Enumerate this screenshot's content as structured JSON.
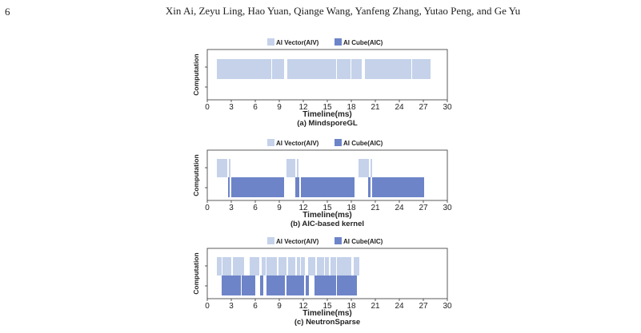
{
  "header": {
    "page_number": "6",
    "authors": "Xin Ai, Zeyu Ling, Hao Yuan, Qiange Wang, Yanfeng Zhang, Yutao Peng, and Ge Yu"
  },
  "colors": {
    "aiv": "#c5d2ea",
    "aic": "#6d84c8",
    "axis": "#333333"
  },
  "chart_data": [
    {
      "type": "bar",
      "subtype": "timeline",
      "caption": "(a) MindsporeGL",
      "xlabel": "Timeline(ms)",
      "ylabel": "Computation",
      "xlim": [
        0,
        30
      ],
      "xticks": [
        "0",
        "3",
        "6",
        "9",
        "12",
        "15",
        "18",
        "21",
        "24",
        "27",
        "30"
      ],
      "legend": {
        "placement": "top",
        "items": [
          "AI Vector(AIV)",
          "AI Cube(AIC)"
        ]
      },
      "series": [
        {
          "name": "AI Vector(AIV)",
          "lane": "upper",
          "segments": [
            [
              1.2,
              8.0
            ],
            [
              8.1,
              9.6
            ],
            [
              10.0,
              16.1
            ],
            [
              16.2,
              17.9
            ],
            [
              18.0,
              19.3
            ],
            [
              19.7,
              25.5
            ],
            [
              25.6,
              27.9
            ]
          ]
        },
        {
          "name": "AI Cube(AIC)",
          "lane": "lower",
          "segments": []
        }
      ]
    },
    {
      "type": "bar",
      "subtype": "timeline",
      "caption": "(b) AIC-based kernel",
      "xlabel": "Timeline(ms)",
      "ylabel": "Computation",
      "xlim": [
        0,
        30
      ],
      "xticks": [
        "0",
        "3",
        "6",
        "9",
        "12",
        "15",
        "18",
        "21",
        "24",
        "27",
        "30"
      ],
      "legend": {
        "placement": "top",
        "items": [
          "AI Vector(AIV)",
          "AI Cube(AIC)"
        ]
      },
      "series": [
        {
          "name": "AI Vector(AIV)",
          "lane": "upper",
          "segments": [
            [
              1.2,
              2.5
            ],
            [
              2.7,
              2.9
            ],
            [
              9.9,
              11.0
            ],
            [
              11.2,
              11.4
            ],
            [
              18.9,
              20.2
            ],
            [
              20.4,
              20.6
            ]
          ]
        },
        {
          "name": "AI Cube(AIC)",
          "lane": "lower",
          "segments": [
            [
              2.6,
              2.8
            ],
            [
              3.0,
              9.6
            ],
            [
              11.0,
              11.5
            ],
            [
              11.7,
              18.4
            ],
            [
              20.1,
              20.4
            ],
            [
              20.6,
              27.1
            ]
          ]
        }
      ]
    },
    {
      "type": "bar",
      "subtype": "timeline",
      "caption": "(c) NeutronSparse",
      "xlabel": "Timeline(ms)",
      "ylabel": "Computation",
      "xlim": [
        0,
        30
      ],
      "xticks": [
        "0",
        "3",
        "6",
        "9",
        "12",
        "15",
        "18",
        "21",
        "24",
        "27",
        "30"
      ],
      "legend": {
        "placement": "top",
        "items": [
          "AI Vector(AIV)",
          "AI Cube(AIC)"
        ]
      },
      "series": [
        {
          "name": "AI Vector(AIV)",
          "lane": "upper",
          "segments": [
            [
              1.2,
              1.8
            ],
            [
              1.9,
              3.0
            ],
            [
              3.2,
              4.6
            ],
            [
              5.3,
              6.5
            ],
            [
              6.8,
              7.3
            ],
            [
              7.4,
              8.7
            ],
            [
              8.9,
              9.9
            ],
            [
              10.1,
              11.0
            ],
            [
              11.2,
              11.6
            ],
            [
              11.7,
              12.2
            ],
            [
              12.6,
              13.5
            ],
            [
              13.7,
              14.6
            ],
            [
              14.7,
              15.2
            ],
            [
              15.4,
              16.1
            ],
            [
              16.2,
              18.0
            ],
            [
              18.3,
              19.0
            ]
          ]
        },
        {
          "name": "AI Cube(AIC)",
          "lane": "lower",
          "segments": [
            [
              1.8,
              4.2
            ],
            [
              4.3,
              6.0
            ],
            [
              6.6,
              7.0
            ],
            [
              7.4,
              9.7
            ],
            [
              9.9,
              12.1
            ],
            [
              12.3,
              12.7
            ],
            [
              13.4,
              16.1
            ],
            [
              16.2,
              18.7
            ]
          ]
        }
      ]
    }
  ]
}
